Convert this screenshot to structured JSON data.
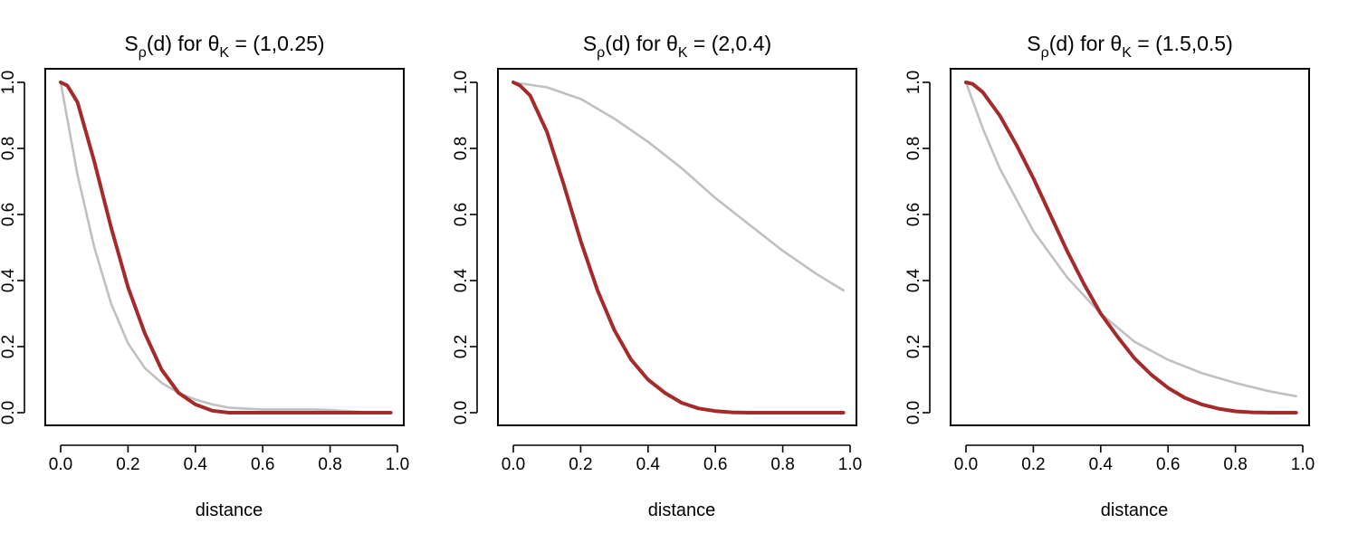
{
  "chart_data": [
    {
      "type": "line",
      "title": {
        "s": "S",
        "sub_rho": "ρ",
        "d": "(d) for ",
        "theta": "θ",
        "sub_k": "K",
        "rest": " = (1,0.25)"
      },
      "xlabel": "distance",
      "ylabel": "",
      "xlim": [
        0,
        1
      ],
      "ylim": [
        0,
        1
      ],
      "xticks": [
        "0.0",
        "0.2",
        "0.4",
        "0.6",
        "0.8",
        "1.0"
      ],
      "yticks": [
        "0.0",
        "0.2",
        "0.4",
        "0.6",
        "0.8",
        "1.0"
      ],
      "grid": false,
      "series": [
        {
          "color": "#c0c0c0",
          "x": [
            0,
            0.05,
            0.1,
            0.15,
            0.2,
            0.25,
            0.3,
            0.35,
            0.4,
            0.45,
            0.5,
            0.55,
            0.6,
            0.65,
            0.7,
            0.75,
            0.8,
            0.85,
            0.9,
            0.98
          ],
          "y": [
            1.0,
            0.72,
            0.5,
            0.33,
            0.21,
            0.135,
            0.09,
            0.06,
            0.04,
            0.025,
            0.015,
            0.012,
            0.01,
            0.01,
            0.01,
            0.01,
            0.008,
            0.005,
            0.002,
            0.0
          ]
        },
        {
          "color": "#a52a2a",
          "x": [
            0,
            0.02,
            0.05,
            0.1,
            0.15,
            0.2,
            0.25,
            0.3,
            0.35,
            0.4,
            0.45,
            0.5,
            0.6,
            0.7,
            0.8,
            0.9,
            0.98
          ],
          "y": [
            1.0,
            0.99,
            0.94,
            0.76,
            0.56,
            0.38,
            0.24,
            0.13,
            0.06,
            0.025,
            0.006,
            0.0,
            0.0,
            0.0,
            0.0,
            0.0,
            0.0
          ]
        }
      ]
    },
    {
      "type": "line",
      "title": {
        "s": "S",
        "sub_rho": "ρ",
        "d": "(d) for ",
        "theta": "θ",
        "sub_k": "K",
        "rest": " = (2,0.4)"
      },
      "xlabel": "distance",
      "ylabel": "",
      "xlim": [
        0,
        1
      ],
      "ylim": [
        0,
        1
      ],
      "xticks": [
        "0.0",
        "0.2",
        "0.4",
        "0.6",
        "0.8",
        "1.0"
      ],
      "yticks": [
        "0.0",
        "0.2",
        "0.4",
        "0.6",
        "0.8",
        "1.0"
      ],
      "grid": false,
      "series": [
        {
          "color": "#c0c0c0",
          "x": [
            0,
            0.1,
            0.2,
            0.3,
            0.4,
            0.5,
            0.6,
            0.7,
            0.8,
            0.9,
            0.98
          ],
          "y": [
            1.0,
            0.985,
            0.95,
            0.89,
            0.82,
            0.74,
            0.65,
            0.57,
            0.49,
            0.42,
            0.37
          ]
        },
        {
          "color": "#a52a2a",
          "x": [
            0,
            0.02,
            0.05,
            0.1,
            0.15,
            0.2,
            0.25,
            0.3,
            0.35,
            0.4,
            0.45,
            0.5,
            0.55,
            0.6,
            0.65,
            0.7,
            0.8,
            0.9,
            0.98
          ],
          "y": [
            1.0,
            0.99,
            0.96,
            0.85,
            0.69,
            0.52,
            0.37,
            0.25,
            0.16,
            0.1,
            0.06,
            0.03,
            0.013,
            0.005,
            0.001,
            0.0,
            0.0,
            0.0,
            0.0
          ]
        }
      ]
    },
    {
      "type": "line",
      "title": {
        "s": "S",
        "sub_rho": "ρ",
        "d": "(d) for ",
        "theta": "θ",
        "sub_k": "K",
        "rest": " = (1.5,0.5)"
      },
      "xlabel": "distance",
      "ylabel": "",
      "xlim": [
        0,
        1
      ],
      "ylim": [
        0,
        1
      ],
      "xticks": [
        "0.0",
        "0.2",
        "0.4",
        "0.6",
        "0.8",
        "1.0"
      ],
      "yticks": [
        "0.0",
        "0.2",
        "0.4",
        "0.6",
        "0.8",
        "1.0"
      ],
      "grid": false,
      "series": [
        {
          "color": "#c0c0c0",
          "x": [
            0,
            0.05,
            0.1,
            0.2,
            0.3,
            0.4,
            0.5,
            0.6,
            0.7,
            0.8,
            0.9,
            0.98
          ],
          "y": [
            1.0,
            0.86,
            0.74,
            0.55,
            0.41,
            0.3,
            0.215,
            0.16,
            0.12,
            0.09,
            0.065,
            0.05
          ]
        },
        {
          "color": "#a52a2a",
          "x": [
            0,
            0.02,
            0.05,
            0.1,
            0.15,
            0.2,
            0.25,
            0.3,
            0.35,
            0.4,
            0.45,
            0.5,
            0.55,
            0.6,
            0.65,
            0.7,
            0.75,
            0.8,
            0.85,
            0.9,
            0.98
          ],
          "y": [
            1.0,
            0.995,
            0.97,
            0.9,
            0.81,
            0.71,
            0.6,
            0.49,
            0.39,
            0.3,
            0.23,
            0.165,
            0.115,
            0.075,
            0.045,
            0.025,
            0.012,
            0.004,
            0.001,
            0.0,
            0.0
          ]
        }
      ]
    }
  ]
}
